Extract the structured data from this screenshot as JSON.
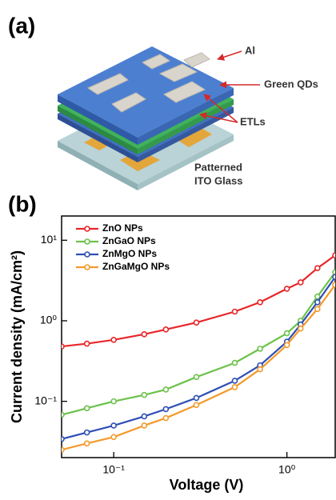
{
  "panel_a": {
    "label": "(a)",
    "al": "Al",
    "qds": "Green QDs",
    "etls": "ETLs",
    "ito": [
      "Patterned",
      "ITO Glass"
    ]
  },
  "panel_b": {
    "label": "(b)"
  },
  "chart_data": {
    "type": "line",
    "xlabel": "Voltage (V)",
    "ylabel": "Current density (mA/cm²)",
    "x_log": true,
    "y_log": true,
    "xlim": [
      0.05,
      1.9
    ],
    "ylim": [
      0.02,
      20
    ],
    "xticks": [
      {
        "value": 0.1,
        "label": "10⁻¹"
      },
      {
        "value": 1,
        "label": "10⁰"
      }
    ],
    "yticks": [
      {
        "value": 0.1,
        "label": "10⁻¹"
      },
      {
        "value": 1,
        "label": "10⁰"
      },
      {
        "value": 10,
        "label": "10¹"
      }
    ],
    "legend": "upper left",
    "x": [
      0.05,
      0.07,
      0.1,
      0.15,
      0.2,
      0.3,
      0.5,
      0.7,
      1.0,
      1.2,
      1.5,
      1.9
    ],
    "series": [
      {
        "name": "ZnO NPs",
        "color": "#e8262a",
        "values": [
          0.48,
          0.52,
          0.58,
          0.68,
          0.78,
          0.95,
          1.3,
          1.7,
          2.5,
          3.0,
          4.5,
          6.5
        ]
      },
      {
        "name": "ZnGaO NPs",
        "color": "#6cc24a",
        "values": [
          0.068,
          0.082,
          0.1,
          0.12,
          0.14,
          0.2,
          0.3,
          0.45,
          0.7,
          1.0,
          2.0,
          4.0
        ]
      },
      {
        "name": "ZnMgO NPs",
        "color": "#2f4fb5",
        "values": [
          0.034,
          0.041,
          0.05,
          0.065,
          0.08,
          0.11,
          0.18,
          0.28,
          0.55,
          0.9,
          1.7,
          3.5
        ]
      },
      {
        "name": "ZnGaMgO NPs",
        "color": "#f39a2c",
        "values": [
          0.025,
          0.03,
          0.036,
          0.05,
          0.062,
          0.09,
          0.15,
          0.25,
          0.5,
          0.8,
          1.4,
          2.8
        ]
      }
    ]
  }
}
